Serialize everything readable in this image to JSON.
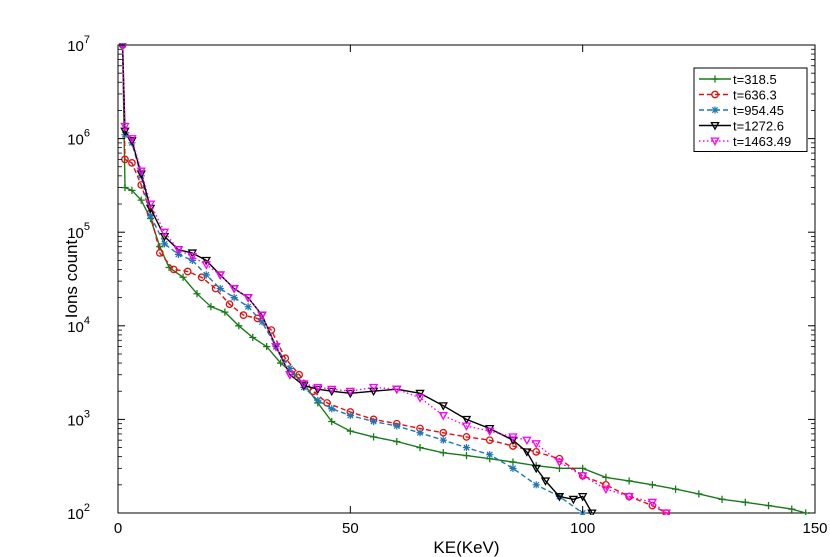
{
  "chart_data": {
    "type": "line",
    "xlabel": "KE(KeV)",
    "ylabel": "Ions count",
    "xlim": [
      0,
      150
    ],
    "ylim": [
      100,
      10000000
    ],
    "yscale": "log",
    "x_ticks": [
      "0",
      "50",
      "100",
      "150"
    ],
    "y_ticks": [
      {
        "base": "10",
        "exp": "2"
      },
      {
        "base": "10",
        "exp": "3"
      },
      {
        "base": "10",
        "exp": "4"
      },
      {
        "base": "10",
        "exp": "5"
      },
      {
        "base": "10",
        "exp": "6"
      },
      {
        "base": "10",
        "exp": "7"
      }
    ],
    "grid": false,
    "legend_position": "top-right",
    "series": [
      {
        "name": "t=318.5",
        "color": "#1a7a1a",
        "marker": "plus",
        "dash": "solid",
        "points": [
          [
            1,
            10000000
          ],
          [
            1.5,
            300000
          ],
          [
            3,
            280000
          ],
          [
            5,
            220000
          ],
          [
            7,
            140000
          ],
          [
            9,
            70000
          ],
          [
            11,
            42000
          ],
          [
            14,
            33000
          ],
          [
            17,
            22000
          ],
          [
            20,
            16000
          ],
          [
            23,
            14000
          ],
          [
            26,
            10000
          ],
          [
            29,
            7500
          ],
          [
            32,
            6000
          ],
          [
            35,
            4000
          ],
          [
            38,
            3000
          ],
          [
            40,
            2400
          ],
          [
            43,
            1500
          ],
          [
            46,
            950
          ],
          [
            50,
            750
          ],
          [
            55,
            650
          ],
          [
            60,
            580
          ],
          [
            65,
            500
          ],
          [
            70,
            440
          ],
          [
            75,
            410
          ],
          [
            80,
            380
          ],
          [
            85,
            350
          ],
          [
            90,
            320
          ],
          [
            95,
            300
          ],
          [
            100,
            300
          ],
          [
            105,
            240
          ],
          [
            110,
            220
          ],
          [
            115,
            200
          ],
          [
            120,
            180
          ],
          [
            125,
            160
          ],
          [
            130,
            140
          ],
          [
            135,
            130
          ],
          [
            140,
            120
          ],
          [
            145,
            110
          ],
          [
            148,
            100
          ]
        ]
      },
      {
        "name": "t=636.3",
        "color": "#e01010",
        "marker": "circle",
        "dash": "dashed",
        "points": [
          [
            1,
            10000000
          ],
          [
            1.5,
            600000
          ],
          [
            3,
            550000
          ],
          [
            5,
            320000
          ],
          [
            7,
            160000
          ],
          [
            9,
            60000
          ],
          [
            12,
            40000
          ],
          [
            15,
            38000
          ],
          [
            18,
            33000
          ],
          [
            21,
            25000
          ],
          [
            24,
            17000
          ],
          [
            27,
            13000
          ],
          [
            30,
            12000
          ],
          [
            33,
            9000
          ],
          [
            36,
            4500
          ],
          [
            39,
            3000
          ],
          [
            42,
            2000
          ],
          [
            45,
            1500
          ],
          [
            50,
            1200
          ],
          [
            55,
            1000
          ],
          [
            60,
            900
          ],
          [
            65,
            800
          ],
          [
            70,
            720
          ],
          [
            75,
            650
          ],
          [
            80,
            600
          ],
          [
            85,
            520
          ],
          [
            90,
            450
          ],
          [
            95,
            380
          ],
          [
            100,
            250
          ],
          [
            105,
            200
          ],
          [
            110,
            150
          ],
          [
            115,
            120
          ],
          [
            118,
            100
          ]
        ]
      },
      {
        "name": "t=954.45",
        "color": "#1f77b4",
        "marker": "asterisk",
        "dash": "dashed",
        "points": [
          [
            1,
            10000000
          ],
          [
            1.5,
            1100000
          ],
          [
            3,
            900000
          ],
          [
            5,
            400000
          ],
          [
            7,
            150000
          ],
          [
            10,
            75000
          ],
          [
            13,
            58000
          ],
          [
            16,
            50000
          ],
          [
            19,
            35000
          ],
          [
            22,
            25000
          ],
          [
            25,
            20000
          ],
          [
            28,
            16000
          ],
          [
            31,
            11000
          ],
          [
            34,
            6000
          ],
          [
            37,
            3500
          ],
          [
            40,
            2200
          ],
          [
            43,
            1600
          ],
          [
            46,
            1300
          ],
          [
            50,
            1100
          ],
          [
            55,
            950
          ],
          [
            60,
            850
          ],
          [
            65,
            720
          ],
          [
            70,
            600
          ],
          [
            75,
            500
          ],
          [
            80,
            420
          ],
          [
            85,
            300
          ],
          [
            90,
            200
          ],
          [
            95,
            150
          ],
          [
            100,
            100
          ]
        ]
      },
      {
        "name": "t=1272.6",
        "color": "#000000",
        "marker": "triangle-down",
        "dash": "solid",
        "points": [
          [
            1,
            10000000
          ],
          [
            1.5,
            1200000
          ],
          [
            3,
            950000
          ],
          [
            5,
            420000
          ],
          [
            7,
            180000
          ],
          [
            10,
            90000
          ],
          [
            13,
            65000
          ],
          [
            16,
            60000
          ],
          [
            19,
            50000
          ],
          [
            22,
            35000
          ],
          [
            25,
            25000
          ],
          [
            28,
            20000
          ],
          [
            31,
            13000
          ],
          [
            34,
            6000
          ],
          [
            37,
            3000
          ],
          [
            40,
            2300
          ],
          [
            43,
            2100
          ],
          [
            46,
            2000
          ],
          [
            50,
            1900
          ],
          [
            55,
            2000
          ],
          [
            60,
            2100
          ],
          [
            65,
            1900
          ],
          [
            70,
            1400
          ],
          [
            75,
            1000
          ],
          [
            80,
            800
          ],
          [
            85,
            600
          ],
          [
            88,
            450
          ],
          [
            90,
            300
          ],
          [
            92,
            220
          ],
          [
            95,
            150
          ],
          [
            98,
            140
          ],
          [
            100,
            150
          ],
          [
            102,
            100
          ]
        ]
      },
      {
        "name": "t=1463.49",
        "color": "#ff00ff",
        "marker": "triangle-down",
        "dash": "dotted",
        "points": [
          [
            1,
            10000000
          ],
          [
            1.5,
            1350000
          ],
          [
            3,
            1000000
          ],
          [
            5,
            450000
          ],
          [
            7,
            200000
          ],
          [
            10,
            100000
          ],
          [
            13,
            65000
          ],
          [
            16,
            55000
          ],
          [
            19,
            45000
          ],
          [
            22,
            35000
          ],
          [
            25,
            25000
          ],
          [
            28,
            20000
          ],
          [
            31,
            13000
          ],
          [
            34,
            6000
          ],
          [
            37,
            3000
          ],
          [
            40,
            2400
          ],
          [
            43,
            2200
          ],
          [
            46,
            2100
          ],
          [
            50,
            2000
          ],
          [
            55,
            2200
          ],
          [
            60,
            2100
          ],
          [
            65,
            1700
          ],
          [
            70,
            1100
          ],
          [
            75,
            850
          ],
          [
            80,
            750
          ],
          [
            85,
            650
          ],
          [
            88,
            600
          ],
          [
            90,
            550
          ],
          [
            95,
            350
          ],
          [
            100,
            250
          ],
          [
            105,
            180
          ],
          [
            110,
            150
          ],
          [
            115,
            130
          ],
          [
            118,
            100
          ]
        ]
      }
    ]
  }
}
